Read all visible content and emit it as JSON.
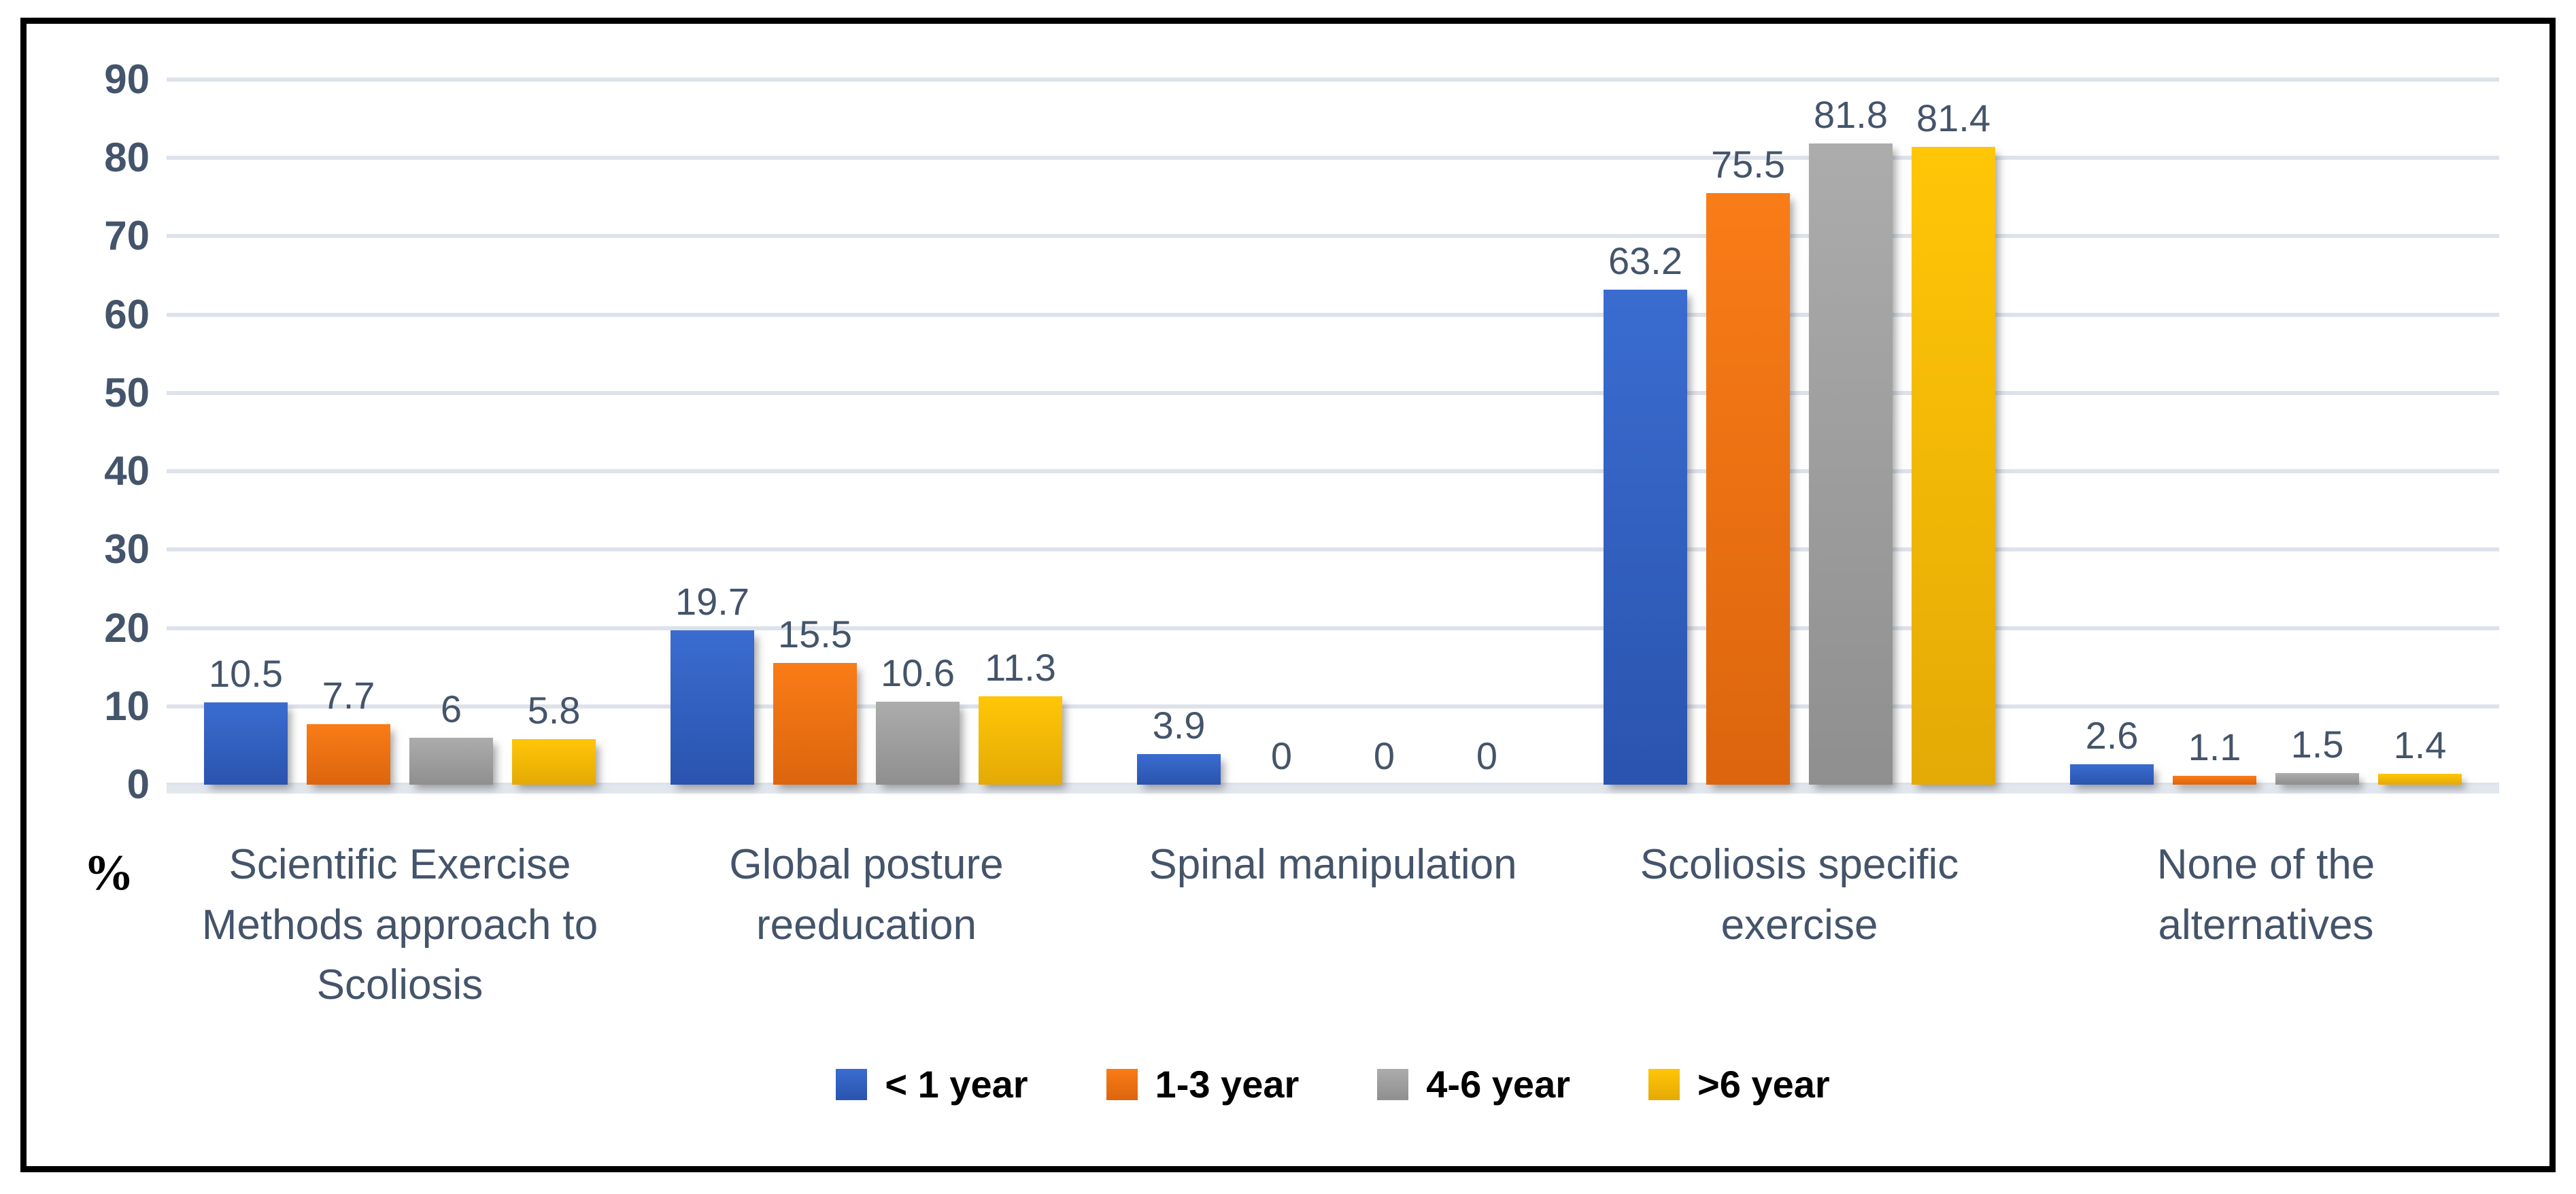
{
  "colors": {
    "text": "#44546A",
    "legend_text": "#000000",
    "gridline": "#DDE2EB",
    "zero_axis_band": "#E2E6ED",
    "frame_border": "#000000",
    "background": "#FFFFFF"
  },
  "chart_data": {
    "type": "bar",
    "title": "",
    "xlabel": "",
    "ylabel": "%",
    "ylim": [
      0,
      90
    ],
    "y_ticks": [
      90,
      80,
      70,
      60,
      50,
      40,
      30,
      20,
      10,
      0
    ],
    "grid": true,
    "legend_position": "bottom",
    "categories": [
      "Scientific Exercise Methods approach to Scoliosis",
      "Global posture reeducation",
      "Spinal manipulation",
      "Scoliosis specific exercise",
      "None of the alternatives"
    ],
    "series": [
      {
        "name": "< 1 year",
        "color": "#2E5CB8",
        "color_top": "#3A6CD0",
        "color_bottom": "#2A54AE",
        "values": [
          10.5,
          19.7,
          3.9,
          63.2,
          2.6
        ],
        "labels": [
          "10.5",
          "19.7",
          "3.9",
          "63.2",
          "2.6"
        ]
      },
      {
        "name": "1-3 year",
        "color": "#ED7D31",
        "color_top": "#F97C17",
        "color_bottom": "#DC650D",
        "values": [
          7.7,
          15.5,
          0,
          75.5,
          1.1
        ],
        "labels": [
          "7.7",
          "15.5",
          "0",
          "75.5",
          "1.1"
        ]
      },
      {
        "name": "4-6 year",
        "color": "#A5A5A5",
        "color_top": "#ACACAC",
        "color_bottom": "#8F8F8F",
        "values": [
          6,
          10.6,
          0,
          81.8,
          1.5
        ],
        "labels": [
          "6",
          "10.6",
          "0",
          "81.8",
          "1.5"
        ]
      },
      {
        "name": ">6 year",
        "color": "#FFC000",
        "color_top": "#FFC607",
        "color_bottom": "#E4AA06",
        "values": [
          5.8,
          11.3,
          0,
          81.4,
          1.4
        ],
        "labels": [
          "5.8",
          "11.3",
          "0",
          "81.4",
          "1.4"
        ]
      }
    ]
  }
}
